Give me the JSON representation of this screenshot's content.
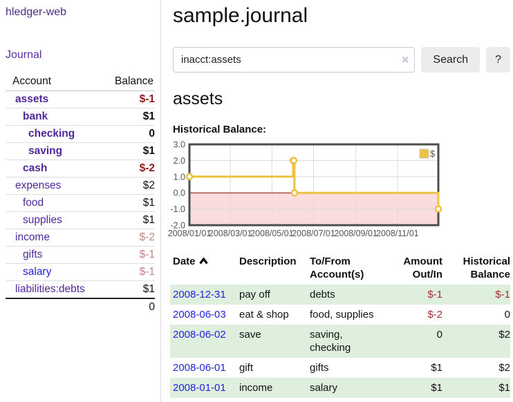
{
  "theme": {
    "purple_link": "#50279a",
    "blue_link": "#2222dd",
    "neg_strong": "#8e1a1a",
    "neg_weak": "#c48383",
    "amount_neg": "#9e3131",
    "row_green": "#deefde",
    "chart_line": "#edc240"
  },
  "sidebar": {
    "brand": "hledger-web",
    "journal_link": "Journal",
    "table_headers": {
      "account": "Account",
      "balance": "Balance"
    },
    "accounts": [
      {
        "name": "assets",
        "indent": 0,
        "bold": true,
        "balance": "$-1",
        "balance_style": "neg-strong",
        "link_style": "purple"
      },
      {
        "name": "bank",
        "indent": 1,
        "bold": true,
        "balance": "$1",
        "balance_style": "pos",
        "link_style": "purple"
      },
      {
        "name": "checking",
        "indent": 2,
        "bold": true,
        "balance": "0",
        "balance_style": "pos",
        "link_style": "purple"
      },
      {
        "name": "saving",
        "indent": 2,
        "bold": true,
        "balance": "$1",
        "balance_style": "pos",
        "link_style": "purple"
      },
      {
        "name": "cash",
        "indent": 1,
        "bold": true,
        "balance": "$-2",
        "balance_style": "neg-strong",
        "link_style": "purple"
      },
      {
        "name": "expenses",
        "indent": 0,
        "bold": false,
        "balance": "$2",
        "balance_style": "pos",
        "link_style": "purple"
      },
      {
        "name": "food",
        "indent": 1,
        "bold": false,
        "balance": "$1",
        "balance_style": "pos",
        "link_style": "purple"
      },
      {
        "name": "supplies",
        "indent": 1,
        "bold": false,
        "balance": "$1",
        "balance_style": "pos",
        "link_style": "purple"
      },
      {
        "name": "income",
        "indent": 0,
        "bold": false,
        "balance": "$-2",
        "balance_style": "neg-weak",
        "link_style": "purple"
      },
      {
        "name": "gifts",
        "indent": 1,
        "bold": false,
        "balance": "$-1",
        "balance_style": "neg-weak",
        "link_style": "purple"
      },
      {
        "name": "salary",
        "indent": 1,
        "bold": false,
        "balance": "$-1",
        "balance_style": "neg-weak",
        "link_style": "blue"
      },
      {
        "name": "liabilities:debts",
        "indent": 0,
        "bold": false,
        "balance": "$1",
        "balance_style": "pos",
        "link_style": "purple"
      }
    ],
    "total": "0"
  },
  "header": {
    "title": "sample.journal"
  },
  "search": {
    "value": "inacct:assets",
    "clear_icon": "×",
    "button": "Search",
    "help_button": "?"
  },
  "account_page": {
    "heading": "assets",
    "chart_label": "Historical Balance:"
  },
  "chart_data": {
    "type": "line",
    "title": "Historical Balance",
    "step": true,
    "series": [
      {
        "name": "$",
        "points": [
          [
            "2008-01-01",
            1
          ],
          [
            "2008-06-01",
            2
          ],
          [
            "2008-06-02",
            2
          ],
          [
            "2008-06-03",
            0
          ],
          [
            "2008-12-31",
            -1
          ]
        ]
      }
    ],
    "x_range": [
      "2008-01-01",
      "2008-12-31"
    ],
    "x_ticks": [
      "2008/01/01",
      "2008/03/01",
      "2008/05/01",
      "2008/07/01",
      "2008/09/01",
      "2008/11/01"
    ],
    "y_ticks": [
      3.0,
      2.0,
      1.0,
      0.0,
      -1.0,
      -2.0
    ],
    "ylim": [
      -2,
      3
    ],
    "grid": true,
    "legend_position": "top-right",
    "legend_label": "$",
    "negative_region_color": "#fbdcdc",
    "zero_line_color": "#8b0000"
  },
  "register": {
    "headers": {
      "date": "Date",
      "description": "Description",
      "accounts": {
        "l1": "To/From",
        "l2": "Account(s)"
      },
      "amount": {
        "l1": "Amount",
        "l2": "Out/In"
      },
      "balance": {
        "l1": "Historical",
        "l2": "Balance"
      }
    },
    "rows": [
      {
        "date": "2008-12-31",
        "description": "pay off",
        "accounts": "debts",
        "amount": "$-1",
        "amount_negative": true,
        "balance": "$-1",
        "balance_negative": true,
        "shaded": true
      },
      {
        "date": "2008-06-03",
        "description": "eat & shop",
        "accounts": "food, supplies",
        "amount": "$-2",
        "amount_negative": true,
        "balance": "0",
        "balance_negative": false,
        "shaded": false
      },
      {
        "date": "2008-06-02",
        "description": "save",
        "accounts": "saving,\nchecking",
        "amount": "0",
        "amount_negative": false,
        "balance": "$2",
        "balance_negative": false,
        "shaded": true
      },
      {
        "date": "2008-06-01",
        "description": "gift",
        "accounts": "gifts",
        "amount": "$1",
        "amount_negative": false,
        "balance": "$2",
        "balance_negative": false,
        "shaded": false
      },
      {
        "date": "2008-01-01",
        "description": "income",
        "accounts": "salary",
        "amount": "$1",
        "amount_negative": false,
        "balance": "$1",
        "balance_negative": false,
        "shaded": true
      }
    ]
  }
}
